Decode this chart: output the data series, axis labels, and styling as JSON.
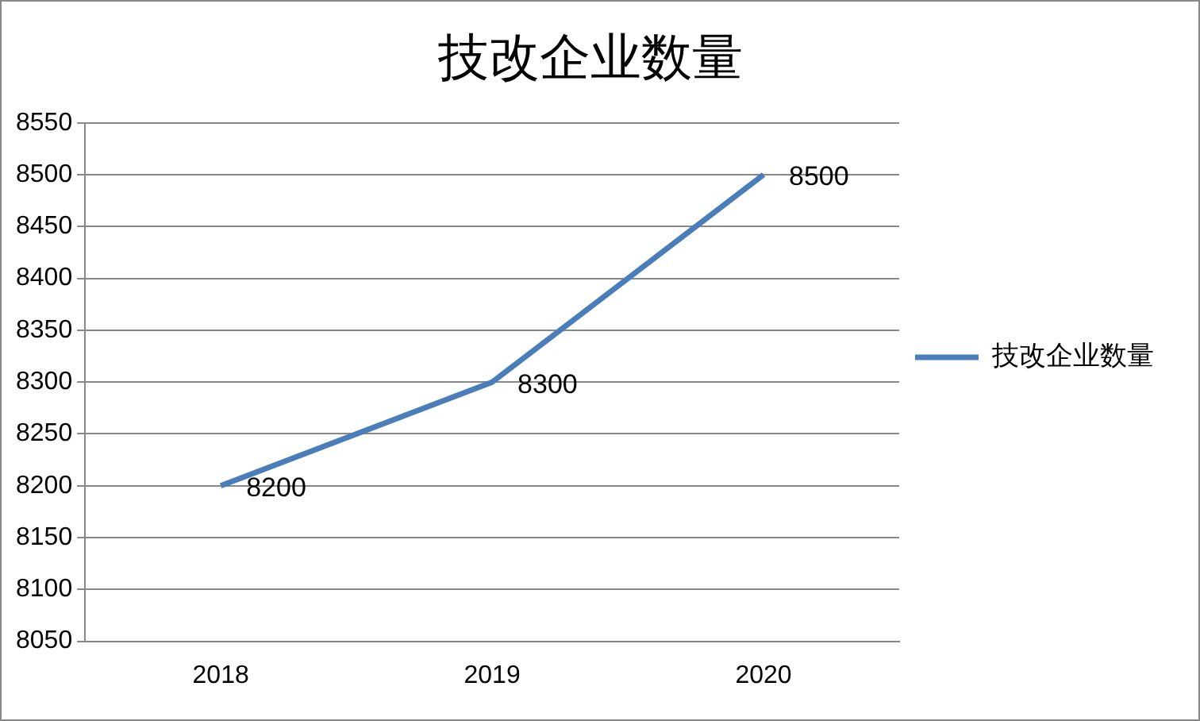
{
  "chart_data": {
    "type": "line",
    "title": "技改企业数量",
    "categories": [
      "2018",
      "2019",
      "2020"
    ],
    "series": [
      {
        "name": "技改企业数量",
        "color": "#4a7ebb",
        "values": [
          8200,
          8300,
          8500
        ]
      }
    ],
    "ylim": [
      8050,
      8550
    ],
    "yticks": [
      8050,
      8100,
      8150,
      8200,
      8250,
      8300,
      8350,
      8400,
      8450,
      8500,
      8550
    ],
    "grid": "y",
    "legend": "right",
    "marker": "none",
    "line_style": "solid",
    "data_labels": true
  }
}
